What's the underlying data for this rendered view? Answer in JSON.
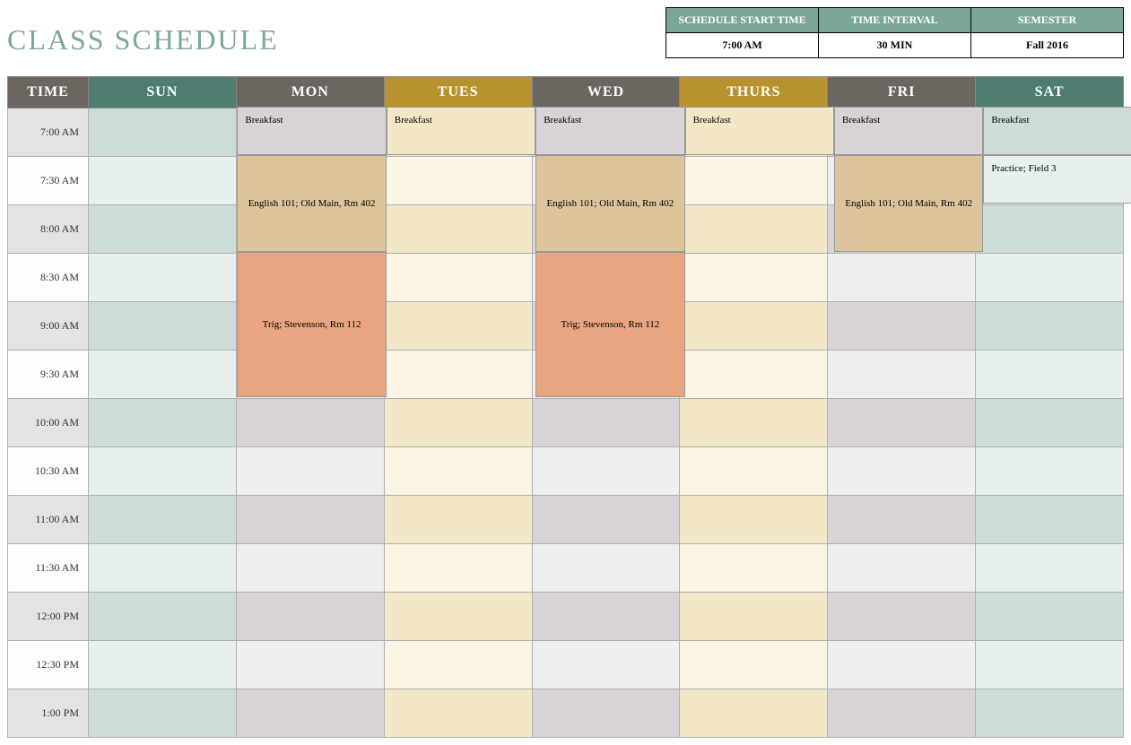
{
  "title": "CLASS SCHEDULE",
  "meta": {
    "headers": [
      "SCHEDULE START TIME",
      "TIME INTERVAL",
      "SEMESTER"
    ],
    "values": [
      "7:00 AM",
      "30 MIN",
      "Fall 2016"
    ]
  },
  "layout": {
    "header_row_h": 34,
    "body_row_h": 54,
    "time_col_w": 90,
    "day_col_w": 166.4,
    "total_w": 1255
  },
  "colors": {
    "title": "#7da69a",
    "meta_header_bg": "#7da69a",
    "header_time_bg": "#6b6660",
    "header_gray_bg": "#6b6660",
    "header_green_bg": "#4f7d71",
    "header_gold_bg": "#b7922f",
    "time_even_bg": "#e3e3e3",
    "time_odd_bg": "#fdfdfd",
    "green_even_bg": "#cddcd6",
    "green_odd_bg": "#e8f0ed",
    "gray_even_bg": "#d7d3d6",
    "gray_odd_bg": "#efeff0",
    "gold_even_bg": "#f2e8c8",
    "gold_odd_bg": "#faf5e4",
    "event_breakfast_gray": "#d7d3d6",
    "event_breakfast_gold": "#f2e8c8",
    "event_breakfast_green": "#cddcd6",
    "event_english": "#dcc49b",
    "event_trig": "#e8a57f",
    "event_practice": "#e8f0ed"
  },
  "days": [
    {
      "key": "sun",
      "label": "SUN",
      "tone": "green"
    },
    {
      "key": "mon",
      "label": "MON",
      "tone": "gray"
    },
    {
      "key": "tues",
      "label": "TUES",
      "tone": "gold"
    },
    {
      "key": "wed",
      "label": "WED",
      "tone": "gray"
    },
    {
      "key": "thurs",
      "label": "THURS",
      "tone": "gold"
    },
    {
      "key": "fri",
      "label": "FRI",
      "tone": "gray"
    },
    {
      "key": "sat",
      "label": "SAT",
      "tone": "green"
    }
  ],
  "times": [
    "7:00 AM",
    "7:30 AM",
    "8:00 AM",
    "8:30 AM",
    "9:00 AM",
    "9:30 AM",
    "10:00 AM",
    "10:30 AM",
    "11:00 AM",
    "11:30 AM",
    "12:00 PM",
    "12:30 PM",
    "1:00 PM"
  ],
  "events": [
    {
      "day": 1,
      "start": 0,
      "span": 1,
      "label": "Breakfast",
      "bg": "#d7d3d6",
      "align": "topleft"
    },
    {
      "day": 2,
      "start": 0,
      "span": 1,
      "label": "Breakfast",
      "bg": "#f2e8c8",
      "align": "topleft"
    },
    {
      "day": 3,
      "start": 0,
      "span": 1,
      "label": "Breakfast",
      "bg": "#d7d3d6",
      "align": "topleft"
    },
    {
      "day": 4,
      "start": 0,
      "span": 1,
      "label": "Breakfast",
      "bg": "#f2e8c8",
      "align": "topleft"
    },
    {
      "day": 5,
      "start": 0,
      "span": 1,
      "label": "Breakfast",
      "bg": "#d7d3d6",
      "align": "topleft"
    },
    {
      "day": 6,
      "start": 0,
      "span": 1,
      "label": "Breakfast",
      "bg": "#cddcd6",
      "align": "topleft"
    },
    {
      "day": 1,
      "start": 1,
      "span": 2,
      "label": "English 101; Old Main, Rm 402",
      "bg": "#dcc49b",
      "align": "center"
    },
    {
      "day": 3,
      "start": 1,
      "span": 2,
      "label": "English 101; Old Main, Rm 402",
      "bg": "#dcc49b",
      "align": "center"
    },
    {
      "day": 5,
      "start": 1,
      "span": 2,
      "label": "English 101; Old Main, Rm 402",
      "bg": "#dcc49b",
      "align": "center"
    },
    {
      "day": 6,
      "start": 1,
      "span": 1,
      "label": "Practice; Field 3",
      "bg": "#e8f0ed",
      "align": "topleft"
    },
    {
      "day": 1,
      "start": 3,
      "span": 3,
      "label": "Trig; Stevenson, Rm 112",
      "bg": "#e8a57f",
      "align": "center"
    },
    {
      "day": 3,
      "start": 3,
      "span": 3,
      "label": "Trig; Stevenson, Rm 112",
      "bg": "#e8a57f",
      "align": "center"
    }
  ]
}
